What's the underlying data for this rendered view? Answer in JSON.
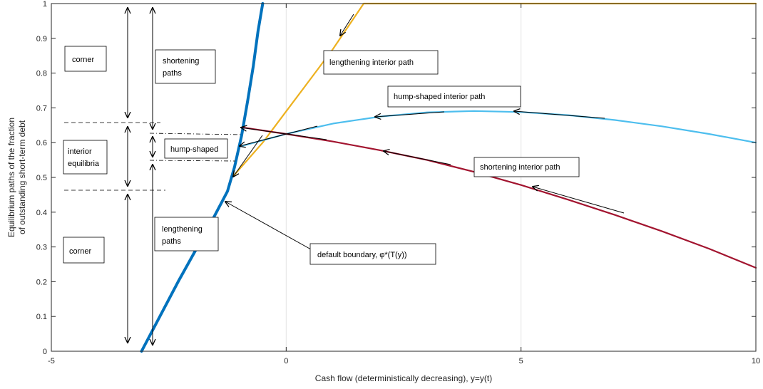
{
  "chart_data": {
    "type": "line",
    "title": "",
    "xlabel": "Cash flow (deterministically decreasing), y=y(t)",
    "ylabel_lines": [
      "Equilibrium paths of the fraction",
      "of outstanding short-term debt"
    ],
    "xlim": [
      -5,
      10
    ],
    "ylim": [
      0,
      1
    ],
    "xticks": [
      "-5",
      "0",
      "5",
      "10"
    ],
    "yticks": [
      "0",
      "0.1",
      "0.2",
      "0.3",
      "0.4",
      "0.5",
      "0.6",
      "0.7",
      "0.8",
      "0.9",
      "1"
    ],
    "grid": true,
    "series": [
      {
        "name": "default boundary",
        "color": "#0072BD",
        "x": [
          -3.08,
          -2.3,
          -1.6,
          -1.25,
          -1.1,
          -0.95,
          -0.82,
          -0.7,
          -0.6,
          -0.5
        ],
        "y": [
          0.0,
          0.2,
          0.37,
          0.46,
          0.53,
          0.62,
          0.72,
          0.82,
          0.92,
          1.0
        ]
      },
      {
        "name": "lengthening interior path",
        "color": "#EDB120",
        "x": [
          -1.12,
          -0.5,
          0.0,
          0.5,
          1.0,
          1.65,
          10.0
        ],
        "y": [
          0.505,
          0.6,
          0.69,
          0.78,
          0.87,
          1.0,
          1.0
        ]
      },
      {
        "name": "hump-shaped interior path",
        "color": "#4DBEEE",
        "x": [
          -0.95,
          0.0,
          1.0,
          2.0,
          3.0,
          4.0,
          5.0,
          6.0,
          7.0,
          8.0,
          9.0,
          10.0
        ],
        "y": [
          0.59,
          0.625,
          0.655,
          0.675,
          0.687,
          0.691,
          0.688,
          0.679,
          0.665,
          0.647,
          0.625,
          0.6
        ]
      },
      {
        "name": "shortening interior path",
        "color": "#A2142F",
        "x": [
          -0.9,
          0.0,
          1.0,
          2.0,
          3.0,
          4.0,
          5.0,
          6.0,
          7.0,
          8.0,
          9.0,
          10.0
        ],
        "y": [
          0.643,
          0.625,
          0.603,
          0.578,
          0.55,
          0.516,
          0.478,
          0.436,
          0.392,
          0.345,
          0.295,
          0.24
        ]
      }
    ],
    "annotations": [
      "corner",
      "interior equilibria",
      "corner",
      "shortening paths",
      "hump-shaped",
      "lengthening paths",
      "lengthening interior path",
      "hump-shaped interior path",
      "shortening interior path",
      "default boundary, φ*(T(y))"
    ]
  }
}
